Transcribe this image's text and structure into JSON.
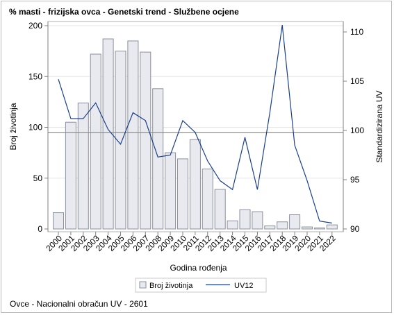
{
  "title": "% masti - frizijska ovca - Genetski trend - Službene ocjene",
  "footer": "Ovce - Nacionalni obračun UV - 2601",
  "chart_data": {
    "type": "bar+line",
    "title": "% masti - frizijska ovca - Genetski trend - Službene ocjene",
    "xlabel": "Godina rođenja",
    "ylabel": "Broj životinja",
    "y2label": "Standardizirana UV",
    "categories": [
      "2000",
      "2001",
      "2002",
      "2003",
      "2004",
      "2005",
      "2006",
      "2007",
      "2008",
      "2009",
      "2010",
      "2011",
      "2012",
      "2013",
      "2014",
      "2015",
      "2016",
      "2017",
      "2018",
      "2019",
      "2020",
      "2021",
      "2022"
    ],
    "ylim": [
      0,
      200
    ],
    "yticks": [
      0,
      50,
      100,
      150,
      200
    ],
    "y2lim": [
      90,
      110
    ],
    "y2ticks": [
      90,
      95,
      100,
      105,
      110
    ],
    "reference_line_y2": 99.8,
    "grid": true,
    "legend_position": "bottom",
    "series": [
      {
        "name": "Broj životinja",
        "type": "bar",
        "axis": "left",
        "color": "#e8eaf0",
        "stroke": "#8a8f9c",
        "values": [
          16,
          105,
          124,
          172,
          187,
          175,
          185,
          174,
          138,
          75,
          69,
          88,
          59,
          39,
          8,
          19,
          17,
          3,
          7,
          14,
          2,
          1,
          4
        ]
      },
      {
        "name": "UV12",
        "type": "line",
        "axis": "right",
        "color": "#1a3e8c",
        "values": [
          105.2,
          101.2,
          101.2,
          102.8,
          100.1,
          98.6,
          101.8,
          101.0,
          97.3,
          97.5,
          101.0,
          99.8,
          96.9,
          94.9,
          94.0,
          99.3,
          94.0,
          101.8,
          110.7,
          98.5,
          94.9,
          90.8,
          90.6
        ]
      }
    ]
  }
}
